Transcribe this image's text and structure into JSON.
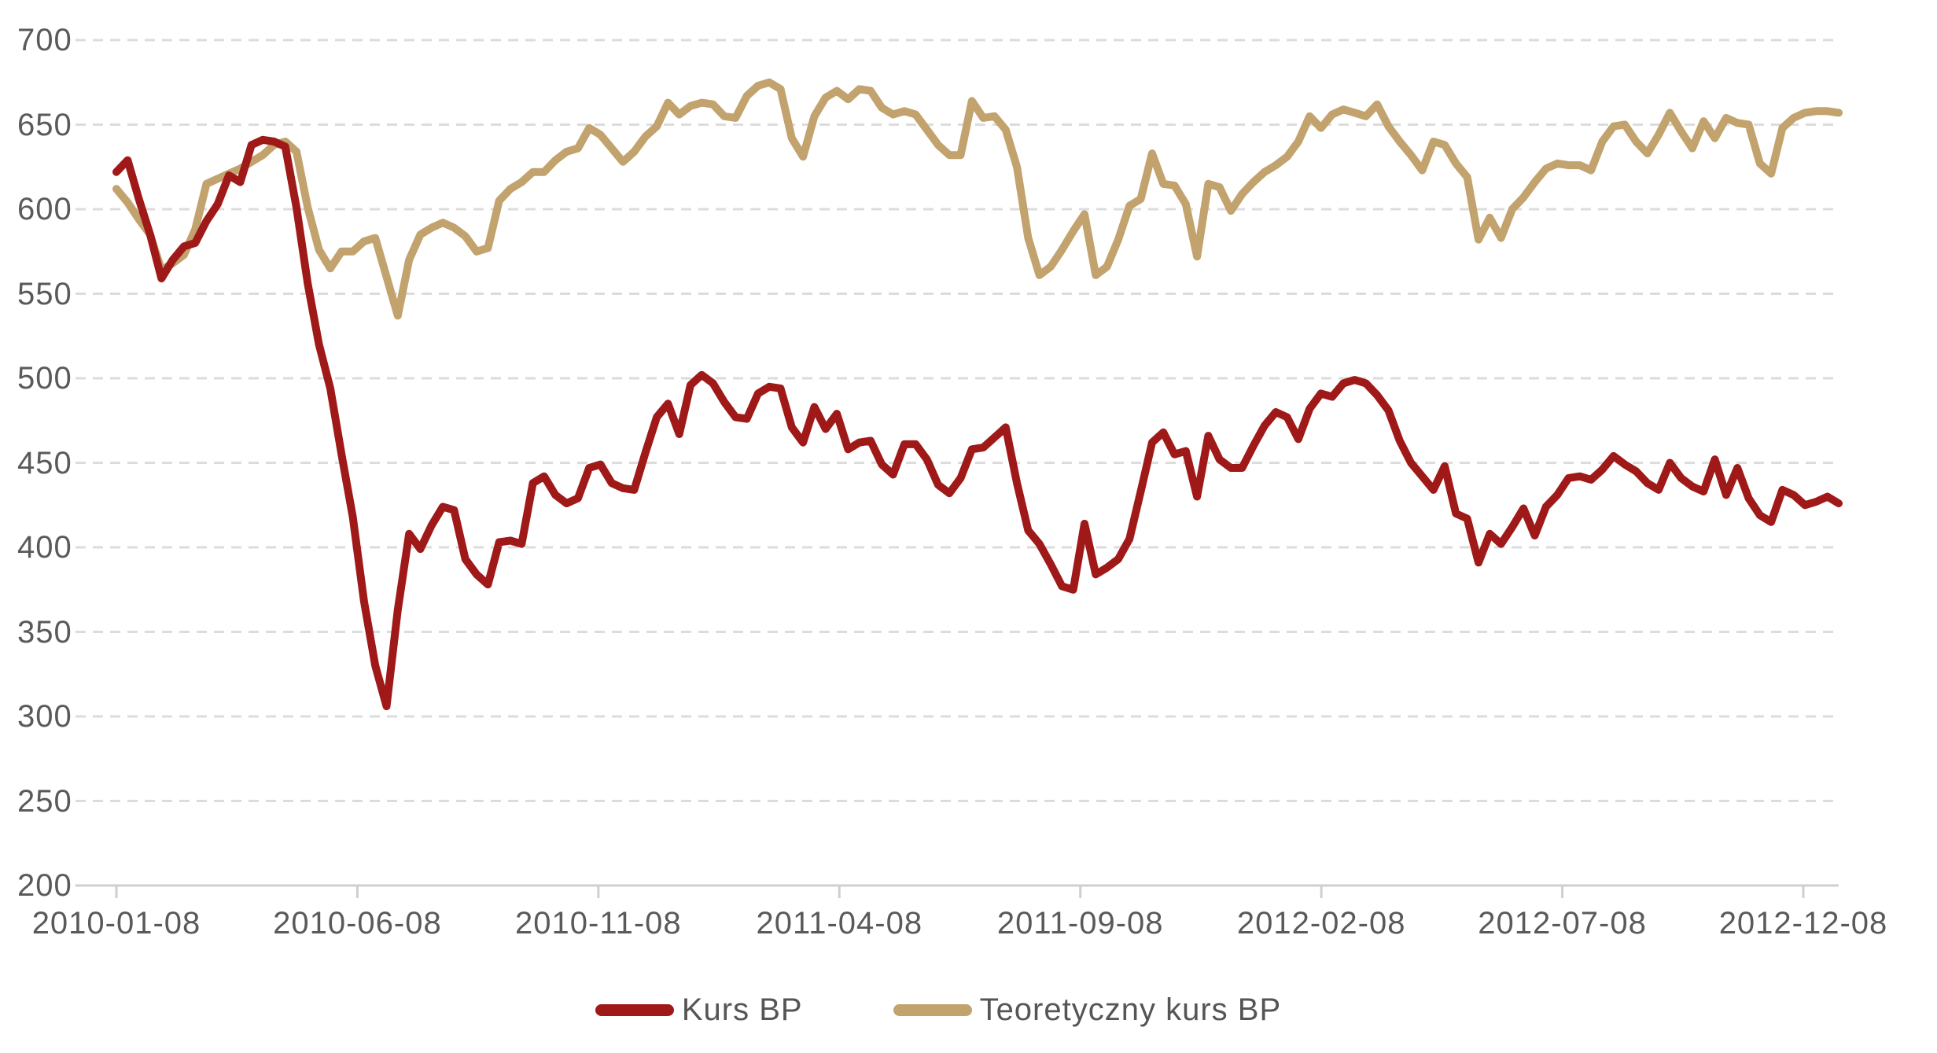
{
  "chart_data": {
    "type": "line",
    "title": "",
    "xlabel": "",
    "ylabel": "",
    "ylim": [
      200,
      700
    ],
    "y_ticks": [
      700,
      650,
      600,
      550,
      500,
      450,
      400,
      350,
      300,
      250,
      200
    ],
    "x_tick_labels": [
      "2010-01-08",
      "2010-06-08",
      "2010-11-08",
      "2011-04-08",
      "2011-09-08",
      "2012-02-08",
      "2012-07-08",
      "2012-12-08"
    ],
    "x_frequency": "weekly",
    "x_start": "2010-01-08",
    "x_end": "2012-12-28",
    "grid": "horizontal-dashed",
    "legend_position": "bottom-center",
    "colors": {
      "grid": "#DCDCDC",
      "axis": "#CFCFCF",
      "tick_text": "#5A5A5A",
      "legend_text": "#555555"
    },
    "series": [
      {
        "name": "Kurs BP",
        "id": "kurs-bp",
        "color": "#A01919",
        "values": [
          622,
          629,
          606,
          585,
          559,
          570,
          578,
          580,
          593,
          603,
          620,
          616,
          638,
          641,
          640,
          637,
          601,
          556,
          520,
          494,
          455,
          418,
          368,
          330,
          306,
          363,
          408,
          399,
          413,
          424,
          422,
          393,
          384,
          378,
          403,
          404,
          402,
          438,
          442,
          431,
          426,
          429,
          447,
          449,
          438,
          435,
          434,
          456,
          477,
          485,
          467,
          496,
          502,
          497,
          486,
          477,
          476,
          491,
          495,
          494,
          471,
          462,
          483,
          470,
          479,
          458,
          462,
          463,
          449,
          443,
          461,
          461,
          452,
          437,
          432,
          441,
          458,
          459,
          465,
          471,
          438,
          410,
          402,
          390,
          377,
          375,
          414,
          384,
          388,
          393,
          405,
          433,
          462,
          468,
          455,
          457,
          430,
          466,
          452,
          447,
          447,
          460,
          472,
          480,
          477,
          464,
          482,
          491,
          489,
          497,
          499,
          497,
          490,
          481,
          463,
          450,
          442,
          434,
          448,
          420,
          417,
          391,
          408,
          402,
          412,
          423,
          407,
          424,
          431,
          441,
          442,
          440,
          446,
          454,
          449,
          445,
          438,
          434,
          450,
          441,
          436,
          433,
          452,
          431,
          447,
          429,
          419,
          415,
          434,
          431,
          425,
          427,
          430,
          426
        ]
      },
      {
        "name": "Teoretyczny kurs BP",
        "id": "teoretyczny-kurs-bp",
        "color": "#C2A26D",
        "values": [
          612,
          604,
          594,
          585,
          564,
          568,
          573,
          588,
          615,
          618,
          621,
          624,
          628,
          632,
          638,
          640,
          634,
          601,
          576,
          565,
          575,
          575,
          581,
          583,
          560,
          537,
          570,
          585,
          589,
          592,
          589,
          584,
          575,
          577,
          605,
          612,
          616,
          622,
          622,
          629,
          634,
          636,
          648,
          644,
          636,
          628,
          634,
          643,
          649,
          663,
          656,
          661,
          663,
          662,
          655,
          654,
          667,
          673,
          675,
          671,
          642,
          631,
          655,
          666,
          670,
          665,
          671,
          670,
          660,
          656,
          658,
          656,
          647,
          638,
          632,
          632,
          664,
          654,
          655,
          647,
          625,
          583,
          561,
          566,
          576,
          587,
          597,
          561,
          566,
          582,
          602,
          606,
          633,
          615,
          614,
          603,
          572,
          615,
          613,
          599,
          609,
          616,
          622,
          626,
          631,
          640,
          655,
          648,
          656,
          659,
          657,
          655,
          662,
          649,
          640,
          632,
          623,
          640,
          638,
          627,
          619,
          582,
          595,
          583,
          600,
          607,
          616,
          624,
          627,
          626,
          626,
          623,
          640,
          649,
          650,
          640,
          633,
          644,
          657,
          646,
          636,
          652,
          642,
          654,
          651,
          650,
          627,
          621,
          648,
          654,
          657,
          658,
          658,
          657
        ]
      }
    ]
  }
}
